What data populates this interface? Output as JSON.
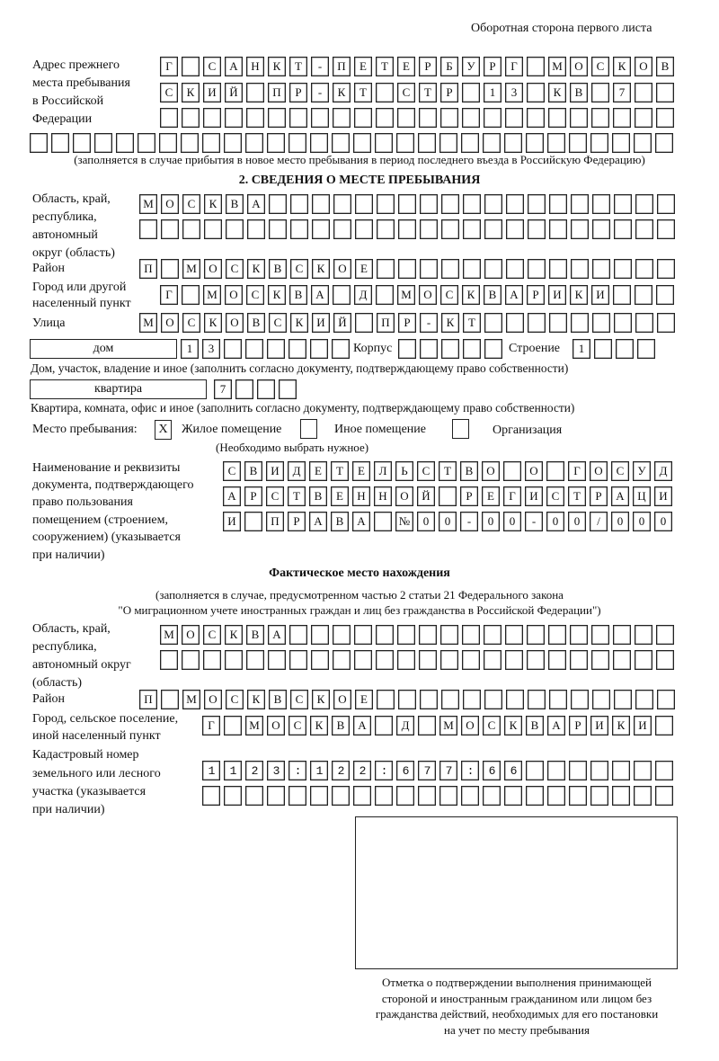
{
  "page_header": "Оборотная сторона первого листа",
  "previous_address": {
    "label": [
      "Адрес прежнего",
      "места пребывания",
      "в Российской",
      "Федерации"
    ],
    "rows": [
      "Г САНКТ-ПЕТЕРБУРГ МОСКОВ",
      "СКИЙ ПР-КТ СТР 13 КВ 7",
      "",
      ""
    ],
    "note": "(заполняется в случае прибытия в новое место пребывания в период последнего въезда в Российскую Федерацию)"
  },
  "section2": {
    "title": "2. СВЕДЕНИЯ О МЕСТЕ ПРЕБЫВАНИЯ",
    "region_label": [
      "Область, край,",
      "республика,",
      "автономный",
      "округ (область)"
    ],
    "region_rows": [
      "МОСКВА",
      ""
    ],
    "district_label": "Район",
    "district": "П МОСКВСКОЕ",
    "city_label": [
      "Город или другой",
      "населенный пункт"
    ],
    "city": "Г МОСКВА Д МОСКВАРИКИ",
    "street_label": "Улица",
    "street": "МОСКОВСКИЙ ПР-КТ",
    "house_type": "дом",
    "house_number": "13",
    "korpus_label": "Корпус",
    "korpus": "",
    "building_label": "Строение",
    "building": "1",
    "house_note": "Дом, участок, владение и иное (заполнить согласно документу, подтверждающему право собственности)",
    "apartment_type": "квартира",
    "apartment_number": "7",
    "apartment_note": "Квартира, комната, офис и иное (заполнить согласно документу, подтверждающему право собственности)",
    "stay_place_label": "Место пребывания:",
    "options": [
      {
        "label": "Жилое помещение",
        "mark": "Х"
      },
      {
        "label": "Иное помещение",
        "mark": ""
      },
      {
        "label": "Организация",
        "mark": ""
      }
    ],
    "choose_note": "(Необходимо выбрать нужное)",
    "document_label": [
      "Наименование и реквизиты",
      "документа, подтверждающего",
      "право пользования",
      "помещением (строением,",
      "сооружением) (указывается",
      "при наличии)"
    ],
    "document_rows": [
      "СВИДЕТЕЛЬСТВО О ГОСУД",
      "АРСТВЕННОЙ РЕГИСТРАЦИ",
      "И ПРАВА №00-00-00/000"
    ]
  },
  "actual_location": {
    "title": "Фактическое место нахождения",
    "note": [
      "(заполняется в случае, предусмотренном частью 2 статьи 21 Федерального закона",
      "\"О миграционном учете иностранных граждан и лиц без гражданства в Российской Федерации\")"
    ],
    "region_label": [
      "Область, край,",
      "республика,",
      "автономный округ",
      "(область)"
    ],
    "region_rows": [
      "МОСКВА",
      ""
    ],
    "district_label": "Район",
    "district": "П МОСКВСКОЕ",
    "city_label": [
      "Город, сельское поселение,",
      "иной населенный пункт"
    ],
    "city": "Г МОСКВА Д МОСКВАРИКИ",
    "cadastral_label": [
      "Кадастровый номер",
      "земельного или лесного",
      "участка (указывается",
      "при наличии)"
    ],
    "cadastral_rows": [
      "1123:122:677:66",
      ""
    ]
  },
  "confirmation_caption": [
    "Отметка о подтверждении выполнения принимающей",
    "стороной и иностранным гражданином или лицом без",
    "гражданства действий, необходимых для его постановки",
    "на учет по месту пребывания"
  ]
}
